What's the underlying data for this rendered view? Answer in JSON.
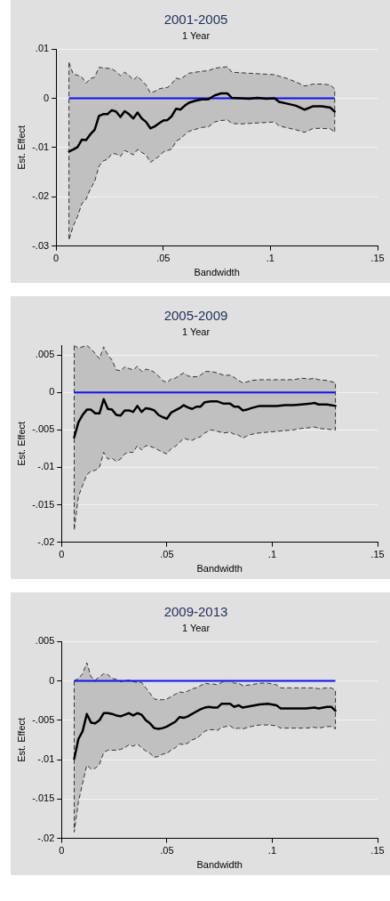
{
  "chart_data": [
    {
      "type": "line",
      "title": "2001-2005",
      "subtitle": "1 Year",
      "xlabel": "Bandwidth",
      "ylabel": "Est. Effect",
      "xlim": [
        0,
        0.15
      ],
      "xticks": [
        {
          "value": 0,
          "label": "0"
        },
        {
          "value": 0.05,
          "label": ".05"
        },
        {
          "value": 0.1,
          "label": ".1"
        },
        {
          "value": 0.15,
          "label": ".15"
        }
      ],
      "ylim": [
        -0.03,
        0.01
      ],
      "yticks": [
        {
          "value": -0.03,
          "label": "-.03"
        },
        {
          "value": -0.02,
          "label": "-.02"
        },
        {
          "value": -0.01,
          "label": "-.01"
        },
        {
          "value": 0,
          "label": "0"
        },
        {
          "value": 0.01,
          "label": ".01"
        }
      ],
      "grid": "y",
      "legend": false,
      "marker": "none",
      "line_style": "solid",
      "ref_lines": [
        {
          "axis": "y",
          "value": 0,
          "color": "#1010f0"
        }
      ],
      "series": [
        {
          "color": "#000000",
          "x": [
            0.006,
            0.008,
            0.01,
            0.012,
            0.014,
            0.016,
            0.018,
            0.02,
            0.022,
            0.024,
            0.026,
            0.028,
            0.03,
            0.032,
            0.034,
            0.036,
            0.038,
            0.04,
            0.042,
            0.044,
            0.046,
            0.048,
            0.05,
            0.052,
            0.054,
            0.056,
            0.058,
            0.06,
            0.062,
            0.065,
            0.068,
            0.071,
            0.074,
            0.077,
            0.08,
            0.082,
            0.086,
            0.09,
            0.094,
            0.098,
            0.102,
            0.104,
            0.108,
            0.112,
            0.116,
            0.12,
            0.124,
            0.128,
            0.13
          ],
          "values": [
            -0.0108,
            -0.0104,
            -0.0099,
            -0.0084,
            -0.0085,
            -0.0073,
            -0.0064,
            -0.0036,
            -0.0032,
            -0.0032,
            -0.0024,
            -0.0027,
            -0.0038,
            -0.0026,
            -0.0032,
            -0.0041,
            -0.0029,
            -0.0041,
            -0.0048,
            -0.0061,
            -0.0057,
            -0.0051,
            -0.0045,
            -0.0044,
            -0.0036,
            -0.0021,
            -0.0023,
            -0.0015,
            -0.0009,
            -0.0005,
            -0.0002,
            -0.0002,
            0.0006,
            0.001,
            0.001,
            0.0001,
            0,
            -0.0001,
            0.0001,
            -0.0001,
            0,
            -0.0007,
            -0.0011,
            -0.0015,
            -0.0023,
            -0.0016,
            -0.0016,
            -0.0019,
            -0.0027
          ],
          "upper": [
            0.0073,
            0.0049,
            0.0047,
            0.0043,
            0.0031,
            0.004,
            0.0043,
            0.0063,
            0.0062,
            0.0061,
            0.006,
            0.0054,
            0.0046,
            0.0053,
            0.0047,
            0.0037,
            0.0045,
            0.0036,
            0.0027,
            0.0011,
            0.0014,
            0.0019,
            0.0021,
            0.0022,
            0.003,
            0.0041,
            0.0039,
            0.0045,
            0.0051,
            0.0053,
            0.0055,
            0.0056,
            0.0061,
            0.0063,
            0.0064,
            0.0053,
            0.0052,
            0.0051,
            0.005,
            0.0049,
            0.0048,
            0.0045,
            0.004,
            0.0033,
            0.0025,
            0.0029,
            0.0029,
            0.0027,
            0.0019
          ],
          "lower": [
            -0.0288,
            -0.0259,
            -0.024,
            -0.0214,
            -0.0205,
            -0.0184,
            -0.0169,
            -0.0138,
            -0.0127,
            -0.0124,
            -0.0112,
            -0.0113,
            -0.0118,
            -0.0106,
            -0.011,
            -0.0115,
            -0.0104,
            -0.011,
            -0.0115,
            -0.013,
            -0.0124,
            -0.0118,
            -0.0109,
            -0.0106,
            -0.0103,
            -0.0087,
            -0.0082,
            -0.0074,
            -0.0067,
            -0.0063,
            -0.0059,
            -0.0058,
            -0.0048,
            -0.0045,
            -0.0044,
            -0.0051,
            -0.0052,
            -0.0051,
            -0.005,
            -0.0049,
            -0.0048,
            -0.0056,
            -0.006,
            -0.0064,
            -0.0069,
            -0.0061,
            -0.0061,
            -0.0062,
            -0.0069
          ]
        }
      ]
    },
    {
      "type": "line",
      "title": "2005-2009",
      "subtitle": "1 Year",
      "xlabel": "Bandwidth",
      "ylabel": "Est. Effect",
      "xlim": [
        0,
        0.15
      ],
      "xticks": [
        {
          "value": 0,
          "label": "0"
        },
        {
          "value": 0.05,
          "label": ".05"
        },
        {
          "value": 0.1,
          "label": ".1"
        },
        {
          "value": 0.15,
          "label": ".15"
        }
      ],
      "ylim": [
        -0.02,
        0.0063
      ],
      "yticks": [
        {
          "value": -0.02,
          "label": "-.02"
        },
        {
          "value": -0.015,
          "label": "-.015"
        },
        {
          "value": -0.01,
          "label": "-.01"
        },
        {
          "value": -0.005,
          "label": "-.005"
        },
        {
          "value": 0,
          "label": "0"
        },
        {
          "value": 0.005,
          "label": ".005"
        }
      ],
      "grid": "y",
      "legend": false,
      "marker": "none",
      "line_style": "solid",
      "ref_lines": [
        {
          "axis": "y",
          "value": 0,
          "color": "#1010f0"
        }
      ],
      "series": [
        {
          "color": "#000000",
          "x": [
            0.006,
            0.008,
            0.01,
            0.012,
            0.014,
            0.016,
            0.018,
            0.02,
            0.022,
            0.024,
            0.026,
            0.028,
            0.03,
            0.032,
            0.034,
            0.036,
            0.038,
            0.04,
            0.042,
            0.044,
            0.046,
            0.048,
            0.05,
            0.052,
            0.054,
            0.056,
            0.058,
            0.06,
            0.062,
            0.064,
            0.066,
            0.068,
            0.071,
            0.074,
            0.077,
            0.08,
            0.082,
            0.084,
            0.086,
            0.088,
            0.09,
            0.094,
            0.098,
            0.102,
            0.106,
            0.11,
            0.114,
            0.118,
            0.12,
            0.122,
            0.126,
            0.13
          ],
          "values": [
            -0.006,
            -0.004,
            -0.003,
            -0.0023,
            -0.0023,
            -0.0028,
            -0.0028,
            -0.0009,
            -0.0022,
            -0.0023,
            -0.003,
            -0.0031,
            -0.0024,
            -0.0024,
            -0.0026,
            -0.0018,
            -0.0026,
            -0.0021,
            -0.0022,
            -0.0024,
            -0.003,
            -0.0033,
            -0.0035,
            -0.0027,
            -0.0024,
            -0.0021,
            -0.0017,
            -0.002,
            -0.0022,
            -0.0019,
            -0.0019,
            -0.0013,
            -0.0012,
            -0.0012,
            -0.0015,
            -0.0015,
            -0.0019,
            -0.0019,
            -0.0024,
            -0.0023,
            -0.0021,
            -0.0018,
            -0.0018,
            -0.0018,
            -0.0017,
            -0.0017,
            -0.0016,
            -0.0015,
            -0.0014,
            -0.0016,
            -0.0016,
            -0.0018
          ],
          "upper": [
            0.0063,
            0.0059,
            0.0061,
            0.0063,
            0.0058,
            0.0052,
            0.0045,
            0.0061,
            0.005,
            0.0043,
            0.003,
            0.0029,
            0.0034,
            0.0032,
            0.003,
            0.0035,
            0.0028,
            0.0031,
            0.003,
            0.0027,
            0.0022,
            0.0016,
            0.0013,
            0.0018,
            0.0019,
            0.0023,
            0.0026,
            0.0022,
            0.0021,
            0.0021,
            0.0023,
            0.0028,
            0.0028,
            0.0026,
            0.0023,
            0.0023,
            0.002,
            0.0016,
            0.0013,
            0.0014,
            0.0016,
            0.0017,
            0.0017,
            0.0017,
            0.0017,
            0.0017,
            0.0019,
            0.0018,
            0.0019,
            0.0017,
            0.0016,
            0.0013
          ],
          "lower": [
            -0.0184,
            -0.0139,
            -0.0124,
            -0.011,
            -0.0105,
            -0.0104,
            -0.01,
            -0.008,
            -0.0089,
            -0.0088,
            -0.0092,
            -0.0089,
            -0.0082,
            -0.008,
            -0.008,
            -0.0071,
            -0.0077,
            -0.0071,
            -0.0072,
            -0.0074,
            -0.0077,
            -0.008,
            -0.0082,
            -0.0075,
            -0.0072,
            -0.0067,
            -0.0061,
            -0.0063,
            -0.0064,
            -0.0061,
            -0.0059,
            -0.0054,
            -0.005,
            -0.0052,
            -0.0054,
            -0.0053,
            -0.0056,
            -0.0057,
            -0.0061,
            -0.0058,
            -0.0056,
            -0.0054,
            -0.0053,
            -0.0052,
            -0.0051,
            -0.005,
            -0.0048,
            -0.0047,
            -0.0046,
            -0.0048,
            -0.0049,
            -0.005
          ]
        }
      ]
    },
    {
      "type": "line",
      "title": "2009-2013",
      "subtitle": "1 Year",
      "xlabel": "Bandwidth",
      "ylabel": "Est. Effect",
      "xlim": [
        0,
        0.15
      ],
      "xticks": [
        {
          "value": 0,
          "label": "0"
        },
        {
          "value": 0.05,
          "label": ".05"
        },
        {
          "value": 0.1,
          "label": ".1"
        },
        {
          "value": 0.15,
          "label": ".15"
        }
      ],
      "ylim": [
        -0.02,
        0.005
      ],
      "yticks": [
        {
          "value": -0.02,
          "label": "-.02"
        },
        {
          "value": -0.015,
          "label": "-.015"
        },
        {
          "value": -0.01,
          "label": "-.01"
        },
        {
          "value": -0.005,
          "label": "-.005"
        },
        {
          "value": 0,
          "label": "0"
        },
        {
          "value": 0.005,
          "label": ".005"
        }
      ],
      "grid": "y",
      "legend": false,
      "marker": "none",
      "line_style": "solid",
      "ref_lines": [
        {
          "axis": "y",
          "value": 0,
          "color": "#1010f0"
        }
      ],
      "series": [
        {
          "color": "#000000",
          "x": [
            0.006,
            0.008,
            0.01,
            0.012,
            0.014,
            0.016,
            0.018,
            0.02,
            0.022,
            0.024,
            0.026,
            0.028,
            0.03,
            0.032,
            0.034,
            0.036,
            0.038,
            0.04,
            0.042,
            0.044,
            0.046,
            0.048,
            0.05,
            0.052,
            0.054,
            0.056,
            0.058,
            0.06,
            0.062,
            0.064,
            0.066,
            0.068,
            0.07,
            0.072,
            0.074,
            0.076,
            0.078,
            0.08,
            0.082,
            0.084,
            0.086,
            0.09,
            0.094,
            0.098,
            0.102,
            0.104,
            0.108,
            0.112,
            0.116,
            0.12,
            0.122,
            0.126,
            0.128,
            0.13
          ],
          "values": [
            -0.0099,
            -0.0074,
            -0.0064,
            -0.0042,
            -0.0053,
            -0.0054,
            -0.005,
            -0.0041,
            -0.0041,
            -0.0042,
            -0.0044,
            -0.0045,
            -0.0043,
            -0.0041,
            -0.0044,
            -0.0041,
            -0.0043,
            -0.005,
            -0.0054,
            -0.006,
            -0.0061,
            -0.006,
            -0.0058,
            -0.0055,
            -0.0052,
            -0.0046,
            -0.0047,
            -0.0045,
            -0.0042,
            -0.0039,
            -0.0036,
            -0.0034,
            -0.0033,
            -0.0034,
            -0.0034,
            -0.0029,
            -0.0029,
            -0.0029,
            -0.0033,
            -0.0031,
            -0.0034,
            -0.0032,
            -0.003,
            -0.0029,
            -0.0031,
            -0.0035,
            -0.0035,
            -0.0035,
            -0.0035,
            -0.0034,
            -0.0035,
            -0.0033,
            -0.0033,
            -0.0038
          ],
          "upper": [
            0,
            0.0003,
            0.0009,
            0.0023,
            0.0005,
            0.0001,
            0.0005,
            0.0009,
            0.0008,
            0.0003,
            0.0002,
            -0.0001,
            0,
            0.0001,
            -0.0001,
            -0.0002,
            -0.0002,
            -0.0009,
            -0.0016,
            -0.0023,
            -0.0024,
            -0.0024,
            -0.0023,
            -0.002,
            -0.0017,
            -0.0014,
            -0.0015,
            -0.0013,
            -0.001,
            -0.0009,
            -0.0006,
            -0.0003,
            -0.0004,
            -0.0004,
            -0.0005,
            -0.0002,
            0,
            0,
            -0.0003,
            -0.0003,
            -0.0006,
            -0.0005,
            -0.0003,
            -0.0003,
            -0.0005,
            -0.0009,
            -0.0009,
            -0.0009,
            -0.0009,
            -0.0009,
            -0.001,
            -0.0009,
            -0.0009,
            -0.0012
          ],
          "lower": [
            -0.0192,
            -0.0154,
            -0.013,
            -0.0107,
            -0.0112,
            -0.0111,
            -0.0106,
            -0.0091,
            -0.0088,
            -0.0088,
            -0.0088,
            -0.0087,
            -0.0085,
            -0.0081,
            -0.0083,
            -0.008,
            -0.0085,
            -0.0089,
            -0.0092,
            -0.0097,
            -0.0096,
            -0.0093,
            -0.0092,
            -0.0088,
            -0.0085,
            -0.008,
            -0.0081,
            -0.0079,
            -0.0075,
            -0.0073,
            -0.0069,
            -0.0064,
            -0.0062,
            -0.0062,
            -0.0063,
            -0.0059,
            -0.0058,
            -0.0057,
            -0.0061,
            -0.006,
            -0.0061,
            -0.0058,
            -0.0056,
            -0.0056,
            -0.0057,
            -0.006,
            -0.006,
            -0.006,
            -0.006,
            -0.0059,
            -0.006,
            -0.0058,
            -0.0058,
            -0.0061
          ]
        }
      ]
    }
  ]
}
